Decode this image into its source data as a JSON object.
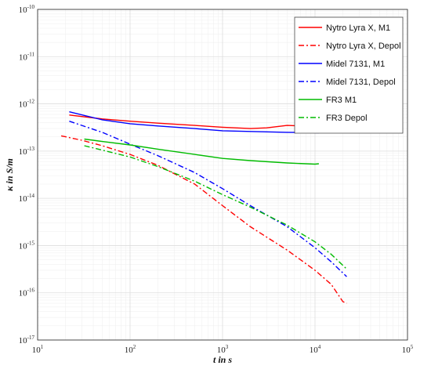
{
  "chart_data": {
    "type": "line",
    "xlabel": "t in s",
    "ylabel": "κ in S/m",
    "xscale": "log",
    "yscale": "log",
    "xlim": [
      10,
      100000
    ],
    "ylim": [
      1e-17,
      1e-10
    ],
    "grid": true,
    "legend": "top-right",
    "x_ticks": [
      {
        "base": "10",
        "exp": "1",
        "value": 10
      },
      {
        "base": "10",
        "exp": "2",
        "value": 100
      },
      {
        "base": "10",
        "exp": "3",
        "value": 1000
      },
      {
        "base": "10",
        "exp": "4",
        "value": 10000
      },
      {
        "base": "10",
        "exp": "5",
        "value": 100000
      }
    ],
    "y_ticks": [
      {
        "base": "10",
        "exp": "-17",
        "value": 1e-17
      },
      {
        "base": "10",
        "exp": "-16",
        "value": 1e-16
      },
      {
        "base": "10",
        "exp": "-15",
        "value": 1e-15
      },
      {
        "base": "10",
        "exp": "-14",
        "value": 1e-14
      },
      {
        "base": "10",
        "exp": "-13",
        "value": 1e-13
      },
      {
        "base": "10",
        "exp": "-12",
        "value": 1e-12
      },
      {
        "base": "10",
        "exp": "-11",
        "value": 1e-11
      },
      {
        "base": "10",
        "exp": "-10",
        "value": 1e-10
      }
    ],
    "series": [
      {
        "name": "Nytro Lyra X, M1",
        "color": "#ff0000",
        "dash": "solid",
        "points": [
          [
            22,
            5.8e-13
          ],
          [
            50,
            4.8e-13
          ],
          [
            100,
            4.3e-13
          ],
          [
            200,
            3.9e-13
          ],
          [
            500,
            3.5e-13
          ],
          [
            1000,
            3.2e-13
          ],
          [
            2000,
            3e-13
          ],
          [
            3000,
            3.1e-13
          ],
          [
            5000,
            3.5e-13
          ],
          [
            7000,
            3.4e-13
          ],
          [
            8000,
            4e-13
          ],
          [
            9000,
            4.8e-13
          ],
          [
            10000,
            4.5e-13
          ],
          [
            11000,
            4.2e-13
          ]
        ]
      },
      {
        "name": "Nytro Lyra X, Depol",
        "color": "#ff0000",
        "dash": "dashdot",
        "points": [
          [
            18,
            2.1e-13
          ],
          [
            30,
            1.7e-13
          ],
          [
            50,
            1.3e-13
          ],
          [
            100,
            8.5e-14
          ],
          [
            200,
            5e-14
          ],
          [
            500,
            2e-14
          ],
          [
            1000,
            7e-15
          ],
          [
            2000,
            2.5e-15
          ],
          [
            5000,
            8e-16
          ],
          [
            10000,
            3e-16
          ],
          [
            15000,
            1.5e-16
          ],
          [
            20000,
            6.5e-17
          ],
          [
            22000,
            6e-17
          ]
        ]
      },
      {
        "name": "Midel 7131, M1",
        "color": "#0000ff",
        "dash": "solid",
        "points": [
          [
            22,
            6.8e-13
          ],
          [
            50,
            4.6e-13
          ],
          [
            100,
            3.8e-13
          ],
          [
            200,
            3.4e-13
          ],
          [
            500,
            3e-13
          ],
          [
            1000,
            2.7e-13
          ],
          [
            2000,
            2.6e-13
          ],
          [
            5000,
            2.5e-13
          ],
          [
            11000,
            2.45e-13
          ]
        ]
      },
      {
        "name": "Midel 7131, Depol",
        "color": "#0000ff",
        "dash": "dashdot",
        "points": [
          [
            22,
            4.3e-13
          ],
          [
            50,
            2.5e-13
          ],
          [
            100,
            1.4e-13
          ],
          [
            200,
            8e-14
          ],
          [
            500,
            3.5e-14
          ],
          [
            1000,
            1.6e-14
          ],
          [
            2000,
            7e-15
          ],
          [
            5000,
            2.5e-15
          ],
          [
            10000,
            9e-16
          ],
          [
            15000,
            4.5e-16
          ],
          [
            22000,
            2.2e-16
          ]
        ]
      },
      {
        "name": "FR3 M1",
        "color": "#00bb00",
        "dash": "solid",
        "points": [
          [
            32,
            1.8e-13
          ],
          [
            50,
            1.6e-13
          ],
          [
            100,
            1.35e-13
          ],
          [
            200,
            1.1e-13
          ],
          [
            500,
            8.5e-14
          ],
          [
            1000,
            7e-14
          ],
          [
            2000,
            6.3e-14
          ],
          [
            5000,
            5.6e-14
          ],
          [
            10000,
            5.3e-14
          ],
          [
            11000,
            5.4e-14
          ]
        ]
      },
      {
        "name": "FR3 Depol",
        "color": "#00bb00",
        "dash": "dashdot",
        "points": [
          [
            32,
            1.3e-13
          ],
          [
            50,
            1.05e-13
          ],
          [
            100,
            7.5e-14
          ],
          [
            200,
            4.7e-14
          ],
          [
            500,
            2.3e-14
          ],
          [
            1000,
            1.2e-14
          ],
          [
            2000,
            6.5e-15
          ],
          [
            5000,
            2.7e-15
          ],
          [
            10000,
            1.2e-15
          ],
          [
            15000,
            6.5e-16
          ],
          [
            22000,
            3.2e-16
          ]
        ]
      }
    ]
  }
}
